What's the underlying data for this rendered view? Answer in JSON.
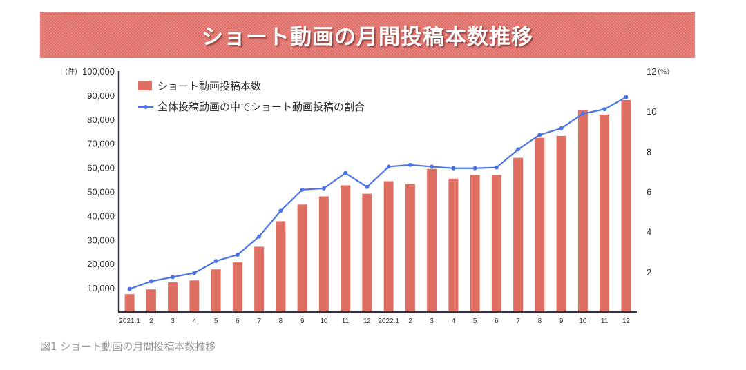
{
  "banner": {
    "title": "ショート動画の月間投稿本数推移"
  },
  "caption": "図1 ショート動画の月間投稿本数推移",
  "colors": {
    "banner": "#e0706a",
    "bar": "#df6e63",
    "line": "#4a74e8",
    "axis": "#333344",
    "caption": "#9a9a9a"
  },
  "chart_data": {
    "type": "bar+line",
    "title": "ショート動画の月間投稿本数推移",
    "categories": [
      "2021.1",
      "2",
      "3",
      "4",
      "5",
      "6",
      "7",
      "8",
      "9",
      "10",
      "11",
      "12",
      "2022.1",
      "2",
      "3",
      "4",
      "5",
      "6",
      "7",
      "8",
      "9",
      "10",
      "11",
      "12"
    ],
    "series": [
      {
        "name": "ショート動画投稿本数",
        "type": "bar",
        "axis": "left",
        "values": [
          7400,
          9400,
          12300,
          13100,
          17700,
          20600,
          27100,
          37700,
          44600,
          48000,
          52600,
          49100,
          54300,
          53100,
          59400,
          55400,
          56900,
          56900,
          64000,
          72300,
          73100,
          83700,
          82000,
          88000
        ]
      },
      {
        "name": "全体投稿動画の中でショート動画投稿の割合",
        "type": "line",
        "axis": "right",
        "values": [
          1.15,
          1.53,
          1.74,
          1.95,
          2.54,
          2.85,
          3.76,
          5.04,
          6.09,
          6.16,
          6.92,
          6.23,
          7.24,
          7.33,
          7.24,
          7.16,
          7.16,
          7.2,
          8.1,
          8.83,
          9.15,
          9.88,
          10.1,
          10.7
        ]
      }
    ],
    "y_left": {
      "unit": "(件)",
      "min": 0,
      "max": 100000,
      "ticks": [
        "10,000",
        "20,000",
        "30,000",
        "40,000",
        "50,000",
        "60,000",
        "70,000",
        "80,000",
        "90,000",
        "100,000"
      ]
    },
    "y_right": {
      "unit": "(%)",
      "min": 0,
      "max": 12,
      "ticks": [
        "2",
        "4",
        "6",
        "8",
        "10",
        "12"
      ]
    },
    "xlabel": "",
    "ylabel_left": "(件)",
    "ylabel_right": "(%)",
    "grid": false,
    "legend_position": "top-left"
  }
}
